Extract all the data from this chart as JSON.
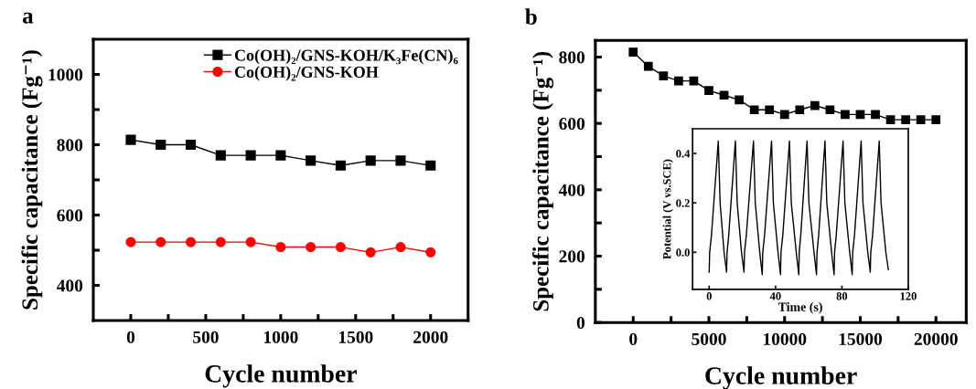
{
  "chart_data": [
    {
      "type": "line",
      "title": "a",
      "xlabel": "Cycle number",
      "ylabel": "Specific capacitance (Fg⁻¹)",
      "x": [
        0,
        200,
        400,
        600,
        800,
        1000,
        1200,
        1400,
        1600,
        1800,
        2000
      ],
      "series": [
        {
          "name": "Co(OH)₂/GNS-KOH/K₃Fe(CN)₆",
          "color": "#000000",
          "marker": "square",
          "values": [
            814,
            800,
            800,
            770,
            770,
            770,
            755,
            741,
            755,
            755,
            741
          ]
        },
        {
          "name": "Co(OH)₂/GNS-KOH",
          "color": "#ff0000",
          "marker": "circle",
          "values": [
            523,
            523,
            523,
            523,
            523,
            509,
            509,
            509,
            494,
            509,
            494
          ]
        }
      ],
      "xlim": [
        -250,
        2250
      ],
      "xticks": [
        0,
        {
          "value": 250,
          "label": null
        },
        500,
        {
          "value": 750,
          "label": null
        },
        1000,
        {
          "value": 1250,
          "label": null
        },
        1500,
        {
          "value": 1750,
          "label": null
        },
        2000
      ],
      "ylim": [
        300,
        1100
      ],
      "yticks": [
        400,
        {
          "value": 500,
          "label": null
        },
        600,
        {
          "value": 700,
          "label": null
        },
        800,
        {
          "value": 900,
          "label": null
        },
        1000
      ],
      "legend": "top right",
      "line_style": "solid",
      "grid": false
    },
    {
      "type": "line",
      "title": "b",
      "xlabel": "Cycle number",
      "ylabel": "Specific capacitance (Fg⁻¹)",
      "x": [
        0,
        1000,
        2000,
        3000,
        4000,
        5000,
        6000,
        7000,
        8000,
        9000,
        10000,
        11000,
        12000,
        13000,
        14000,
        15000,
        16000,
        17000,
        18000,
        19000,
        20000
      ],
      "series": [
        {
          "color": "#000000",
          "marker": "square",
          "values": [
            815,
            772,
            743,
            728,
            728,
            699,
            685,
            671,
            641,
            641,
            627,
            641,
            654,
            641,
            627,
            627,
            627,
            611,
            611,
            611,
            611
          ]
        }
      ],
      "xlim": [
        -2500,
        22000
      ],
      "xticks": [
        0,
        {
          "value": 2500,
          "label": null
        },
        5000,
        {
          "value": 7500,
          "label": null
        },
        10000,
        {
          "value": 12500,
          "label": null
        },
        15000,
        {
          "value": 17500,
          "label": null
        },
        20000
      ],
      "ylim": [
        0,
        850
      ],
      "yticks": [
        0,
        {
          "value": 100,
          "label": null
        },
        200,
        {
          "value": 300,
          "label": null
        },
        400,
        {
          "value": 500,
          "label": null
        },
        600,
        {
          "value": 700,
          "label": null
        },
        800
      ],
      "line_style": "solid",
      "grid": false
    },
    {
      "type": "line",
      "xlabel": "Time (s)",
      "ylabel": "Potential (V vs.SCE)",
      "x": [
        0,
        0.3,
        1.4,
        5.5,
        6.6,
        9.0,
        10.5,
        10.8,
        11.8,
        15.8,
        16.9,
        19.5,
        21.0,
        21.3,
        22.4,
        26.7,
        27.8,
        30.5,
        32.0,
        32.3,
        33.4,
        37.6,
        38.7,
        41.5,
        43.0,
        43.3,
        44.4,
        48.4,
        49.5,
        52.5,
        54.0,
        54.3,
        55.2,
        59.0,
        60.1,
        63.2,
        64.7,
        65.0,
        66.0,
        69.8,
        70.9,
        73.8,
        75.3,
        75.6,
        76.6,
        80.7,
        81.8,
        84.7,
        86.2,
        86.5,
        87.6,
        91.6,
        92.7,
        95.6,
        97.1,
        97.4,
        98.5,
        102.5,
        103.6,
        106.5,
        108.0
      ],
      "series": [
        {
          "color": "#000000",
          "marker": "none",
          "values": [
            -0.08,
            0.0,
            0.07,
            0.45,
            0.2,
            0.0,
            -0.08,
            0.0,
            0.07,
            0.45,
            0.2,
            0.0,
            -0.08,
            0.0,
            0.07,
            0.45,
            0.2,
            0.0,
            -0.09,
            0.0,
            0.07,
            0.45,
            0.2,
            0.0,
            -0.09,
            0.0,
            0.07,
            0.45,
            0.2,
            0.0,
            -0.09,
            0.0,
            0.07,
            0.45,
            0.2,
            0.0,
            -0.09,
            0.0,
            0.07,
            0.45,
            0.2,
            0.0,
            -0.09,
            0.0,
            0.07,
            0.45,
            0.2,
            0.0,
            -0.09,
            0.0,
            0.07,
            0.45,
            0.2,
            0.0,
            -0.08,
            0.0,
            0.07,
            0.45,
            0.2,
            0.0,
            -0.07
          ]
        }
      ],
      "xlim": [
        -10,
        120
      ],
      "xticks": [
        0,
        40,
        80,
        120
      ],
      "ylim": [
        -0.15,
        0.5
      ],
      "yticks": [
        {
          "value": 0.0,
          "label": "0.0"
        },
        {
          "value": 0.2,
          "label": "0.2"
        },
        {
          "value": 0.4,
          "label": "0.4"
        }
      ],
      "line_style": "solid",
      "grid": false
    }
  ]
}
